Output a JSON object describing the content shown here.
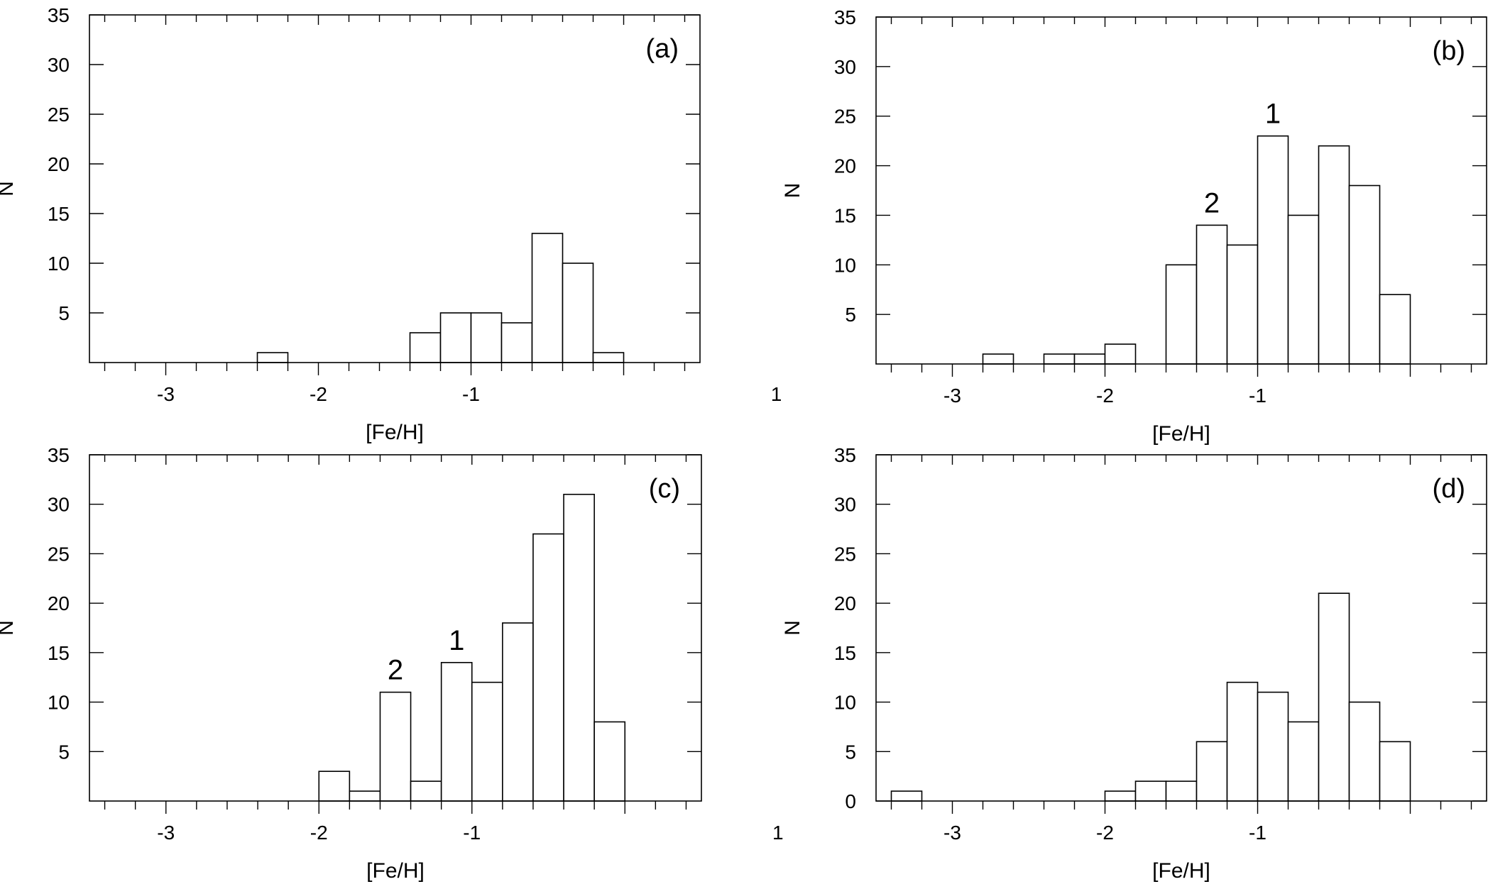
{
  "chart_data": [
    {
      "type": "bar",
      "panel_label": "(a)",
      "xlabel": "[Fe/H]",
      "ylabel": "N",
      "xlim": [
        -3.5,
        0.5
      ],
      "ylim": [
        0,
        35
      ],
      "xticks": [
        -3,
        -2,
        -1,
        1
      ],
      "xtick_labels": [
        "-3",
        "-2",
        "-1",
        "1"
      ],
      "yticks": [
        5,
        10,
        15,
        20,
        25,
        30,
        35
      ],
      "ytick_labels": [
        "5",
        "10",
        "15",
        "20",
        "25",
        "30",
        "35"
      ],
      "bin_width": 0.2,
      "bins": [
        -2.4,
        -1.4,
        -1.2,
        -1.0,
        -0.8,
        -0.6,
        -0.4,
        -0.2
      ],
      "values": [
        1,
        3,
        5,
        5,
        4,
        13,
        10,
        1
      ],
      "annotations": []
    },
    {
      "type": "bar",
      "panel_label": "(b)",
      "xlabel": "[Fe/H]",
      "ylabel": "N",
      "xlim": [
        -3.5,
        0.5
      ],
      "ylim": [
        0,
        35
      ],
      "xticks": [
        -3,
        -2,
        -1,
        1
      ],
      "xtick_labels": [
        "-3",
        "-2",
        "-1",
        "1"
      ],
      "yticks": [
        5,
        10,
        15,
        20,
        25,
        30,
        35
      ],
      "ytick_labels": [
        "5",
        "10",
        "15",
        "20",
        "25",
        "30",
        "35"
      ],
      "bin_width": 0.2,
      "bins": [
        -2.8,
        -2.4,
        -2.2,
        -2.0,
        -1.6,
        -1.4,
        -1.2,
        -1.0,
        -0.8,
        -0.6,
        -0.4,
        -0.2
      ],
      "values": [
        1,
        1,
        1,
        2,
        10,
        14,
        12,
        23,
        15,
        22,
        18,
        7
      ],
      "annotations": [
        {
          "text": "2",
          "x": -1.3,
          "y": 14
        },
        {
          "text": "1",
          "x": -0.9,
          "y": 23
        }
      ]
    },
    {
      "type": "bar",
      "panel_label": "(c)",
      "xlabel": "[Fe/H]",
      "ylabel": "N",
      "xlim": [
        -3.5,
        0.5
      ],
      "ylim": [
        0,
        35
      ],
      "xticks": [
        -3,
        -2,
        -1,
        1
      ],
      "xtick_labels": [
        "-3",
        "-2",
        "-1",
        "1"
      ],
      "yticks": [
        5,
        10,
        15,
        20,
        25,
        30,
        35
      ],
      "ytick_labels": [
        "5",
        "10",
        "15",
        "20",
        "25",
        "30",
        "35"
      ],
      "bin_width": 0.2,
      "bins": [
        -2.0,
        -1.8,
        -1.6,
        -1.4,
        -1.2,
        -1.0,
        -0.8,
        -0.6,
        -0.4,
        -0.2
      ],
      "values": [
        3,
        1,
        11,
        2,
        14,
        12,
        18,
        27,
        31,
        8
      ],
      "annotations": [
        {
          "text": "2",
          "x": -1.5,
          "y": 11
        },
        {
          "text": "1",
          "x": -1.1,
          "y": 14
        }
      ]
    },
    {
      "type": "bar",
      "panel_label": "(d)",
      "xlabel": "[Fe/H]",
      "ylabel": "N",
      "xlim": [
        -3.5,
        0.5
      ],
      "ylim": [
        0,
        35
      ],
      "xticks": [
        -3,
        -2,
        -1,
        1
      ],
      "xtick_labels": [
        "-3",
        "-2",
        "-1",
        "1"
      ],
      "yticks": [
        0,
        5,
        10,
        15,
        20,
        25,
        30,
        35
      ],
      "ytick_labels": [
        "0",
        "5",
        "10",
        "15",
        "20",
        "25",
        "30",
        "35"
      ],
      "bin_width": 0.2,
      "bins": [
        -3.4,
        -2.0,
        -1.8,
        -1.6,
        -1.4,
        -1.2,
        -1.0,
        -0.8,
        -0.6,
        -0.4,
        -0.2
      ],
      "values": [
        1,
        1,
        2,
        2,
        6,
        12,
        11,
        8,
        21,
        10,
        6
      ],
      "annotations": []
    }
  ]
}
